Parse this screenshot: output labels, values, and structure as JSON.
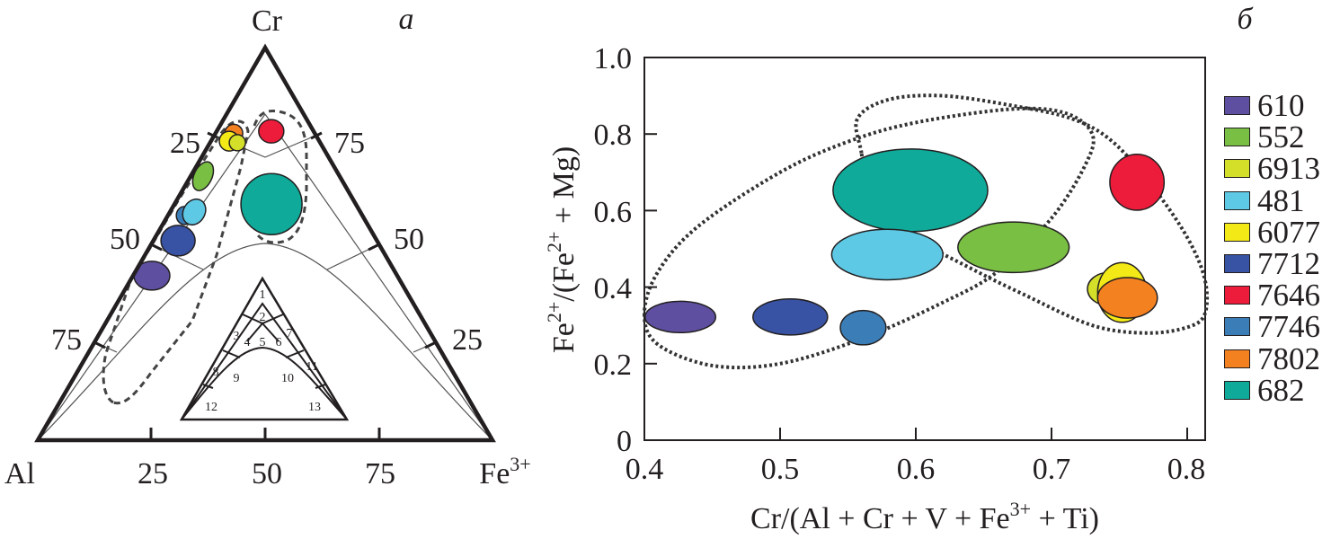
{
  "chart_data": [
    {
      "type": "ternary",
      "panel_label": "а",
      "vertices": {
        "top": "Cr",
        "left": "Al",
        "right_base": "Fe",
        "right_sup": "3+"
      },
      "tick_labels": {
        "left": [
          "25",
          "50",
          "75"
        ],
        "right": [
          "75",
          "50",
          "25"
        ],
        "bottom": [
          "25",
          "50",
          "75"
        ]
      },
      "inset_field_numbers": [
        "1",
        "2",
        "3",
        "4",
        "5",
        "6",
        "7",
        "8",
        "9",
        "10",
        "11",
        "12",
        "13"
      ],
      "points": [
        {
          "sample": "682",
          "Cr": 60,
          "Fe3": 21.4
        },
        {
          "sample": "610",
          "Cr": 41.8,
          "Fe3": 4.2
        },
        {
          "sample": "7712",
          "Cr": 50.7,
          "Fe3": 5.5
        },
        {
          "sample": "7746",
          "Cr": 57.1,
          "Fe3": 3.7
        },
        {
          "sample": "481",
          "Cr": 58,
          "Fe3": 5.4
        },
        {
          "sample": "552",
          "Cr": 67.1,
          "Fe3": 2.8
        },
        {
          "sample": "7802",
          "Cr": 78,
          "Fe3": 4.1
        },
        {
          "sample": "6077",
          "Cr": 76,
          "Fe3": 4.1
        },
        {
          "sample": "6913",
          "Cr": 75.6,
          "Fe3": 6.1
        },
        {
          "sample": "7646",
          "Cr": 78.5,
          "Fe3": 12.1
        }
      ]
    },
    {
      "type": "scatter",
      "panel_label": "б",
      "xlabel": {
        "pre": "Cr/(Al + Cr + V + Fe",
        "sup": "3+",
        "post": " + Ti)"
      },
      "ylabel": {
        "a": "Fe",
        "a_sup": "2+",
        "b": "/(Fe",
        "b_sup": "2+",
        "c": " + Mg)"
      },
      "xlim": [
        0.4,
        0.813
      ],
      "ylim": [
        0,
        1.0
      ],
      "xticks": [
        "0.4",
        "0.5",
        "0.6",
        "0.7",
        "0.8"
      ],
      "yticks": [
        "0",
        "0.2",
        "0.4",
        "0.6",
        "0.8",
        "1.0"
      ],
      "legend_position": "right",
      "series": [
        {
          "name": "610",
          "color": "#5f4fa0",
          "x": 0.4265,
          "y": 0.322,
          "x_range": 0.026,
          "y_range": 0.041
        },
        {
          "name": "552",
          "color": "#79bf43",
          "x": 0.672,
          "y": 0.504,
          "x_range": 0.041,
          "y_range": 0.066
        },
        {
          "name": "6913",
          "color": "#d4df2a",
          "x": 0.742,
          "y": 0.395,
          "x_range": 0.0155,
          "y_range": 0.043
        },
        {
          "name": "481",
          "color": "#5ec9e5",
          "x": 0.579,
          "y": 0.485,
          "x_range": 0.041,
          "y_range": 0.066
        },
        {
          "name": "6077",
          "color": "#f2e916",
          "x": 0.752,
          "y": 0.386,
          "x_range": 0.018,
          "y_range": 0.078
        },
        {
          "name": "7712",
          "color": "#3953a4",
          "x": 0.5075,
          "y": 0.322,
          "x_range": 0.0275,
          "y_range": 0.047
        },
        {
          "name": "7646",
          "color": "#ec1c3a",
          "x": 0.763,
          "y": 0.674,
          "x_range": 0.02,
          "y_range": 0.073
        },
        {
          "name": "7746",
          "color": "#3b7eb7",
          "x": 0.5612,
          "y": 0.294,
          "x_range": 0.0168,
          "y_range": 0.045
        },
        {
          "name": "7802",
          "color": "#f48120",
          "x": 0.756,
          "y": 0.372,
          "x_range": 0.022,
          "y_range": 0.053
        },
        {
          "name": "682",
          "color": "#0faa99",
          "x": 0.596,
          "y": 0.653,
          "x_range": 0.057,
          "y_range": 0.108
        }
      ],
      "draw_order": [
        "682",
        "481",
        "552",
        "610",
        "7712",
        "7746",
        "7646",
        "6913",
        "6077",
        "7802"
      ],
      "fields": [
        [
          [
            0.4,
            0.33
          ],
          [
            0.41,
            0.25
          ],
          [
            0.45,
            0.195
          ],
          [
            0.5,
            0.2
          ],
          [
            0.56,
            0.265
          ],
          [
            0.62,
            0.36
          ],
          [
            0.66,
            0.44
          ],
          [
            0.7,
            0.58
          ],
          [
            0.725,
            0.72
          ],
          [
            0.73,
            0.8
          ],
          [
            0.71,
            0.855
          ],
          [
            0.67,
            0.865
          ],
          [
            0.6,
            0.83
          ],
          [
            0.55,
            0.78
          ],
          [
            0.5,
            0.7
          ],
          [
            0.44,
            0.56
          ],
          [
            0.41,
            0.44
          ]
        ],
        [
          [
            0.56,
            0.75
          ],
          [
            0.557,
            0.84
          ],
          [
            0.58,
            0.89
          ],
          [
            0.62,
            0.9
          ],
          [
            0.67,
            0.875
          ],
          [
            0.715,
            0.84
          ],
          [
            0.745,
            0.78
          ],
          [
            0.775,
            0.66
          ],
          [
            0.8,
            0.53
          ],
          [
            0.813,
            0.42
          ],
          [
            0.813,
            0.33
          ],
          [
            0.8,
            0.295
          ],
          [
            0.77,
            0.28
          ],
          [
            0.73,
            0.3
          ],
          [
            0.68,
            0.38
          ],
          [
            0.64,
            0.45
          ],
          [
            0.6,
            0.53
          ],
          [
            0.565,
            0.65
          ]
        ]
      ]
    }
  ]
}
